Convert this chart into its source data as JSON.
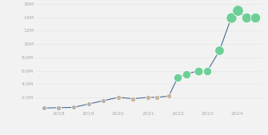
{
  "x": [
    2017.5,
    2018.0,
    2018.5,
    2019.0,
    2019.5,
    2020.0,
    2020.5,
    2021.0,
    2021.3,
    2021.7,
    2022.0,
    2022.3,
    2022.7,
    2023.0,
    2023.4,
    2023.8,
    2024.0,
    2024.3,
    2024.6
  ],
  "y": [
    400000,
    450000,
    500000,
    1000000,
    1500000,
    2000000,
    1800000,
    2000000,
    2000000,
    2200000,
    5000000,
    5500000,
    6000000,
    6000000,
    9000000,
    14000000,
    15000000,
    14000000,
    14000000
  ],
  "marker_colors": [
    "#b8b0a8",
    "#b8b0a8",
    "#b8b0a8",
    "#b8b0a8",
    "#b8b0a8",
    "#c8b8a0",
    "#c8b8a0",
    "#c8b8a0",
    "#c8b8a0",
    "#c8b8a0",
    "#6dcf97",
    "#6dcf97",
    "#6dcf97",
    "#6dcf97",
    "#6dcf97",
    "#6dcf97",
    "#6dcf97",
    "#6dcf97",
    "#6dcf97"
  ],
  "marker_sizes": [
    18,
    20,
    18,
    18,
    18,
    22,
    22,
    22,
    22,
    22,
    55,
    55,
    60,
    55,
    70,
    90,
    95,
    80,
    80
  ],
  "line_color": "#4a6a9a",
  "plot_bg": "#f2f2f2",
  "grid_color": "#e8e8e8",
  "ylim": [
    0,
    16000000
  ],
  "yticks": [
    2000000,
    4000000,
    6000000,
    8000000,
    10000000,
    12000000,
    14000000,
    16000000
  ],
  "ytick_labels": [
    "2.0M",
    "4.0M",
    "6.0M",
    "8.0M",
    "10M",
    "12M",
    "14M",
    "16M"
  ],
  "xtick_labels": [
    "2018",
    "2019",
    "2020",
    "2021",
    "2022",
    "2023",
    "2024"
  ],
  "xtick_positions": [
    2018,
    2019,
    2020,
    2021,
    2022,
    2023,
    2024
  ],
  "xlim": [
    2017.2,
    2024.85
  ]
}
